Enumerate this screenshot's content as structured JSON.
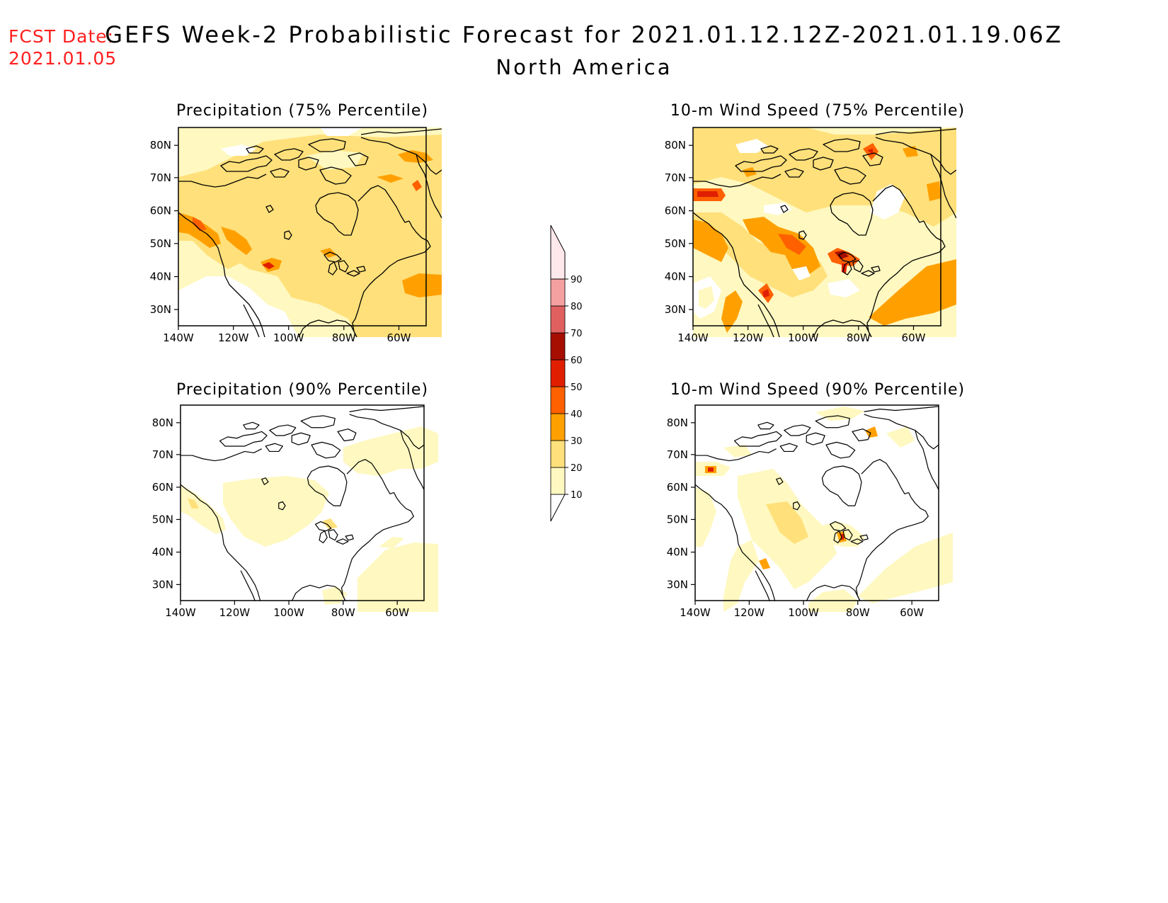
{
  "header": {
    "fcst_label": "FCST Date:",
    "fcst_date": "2021.01.05",
    "title": "GEFS Week-2 Probabilistic Forecast for 2021.01.12.12Z-2021.01.19.06Z",
    "region": "North America"
  },
  "axes": {
    "lat_ticks": [
      "80N",
      "70N",
      "60N",
      "50N",
      "40N",
      "30N"
    ],
    "lon_ticks": [
      "140W",
      "120W",
      "100W",
      "80W",
      "60W"
    ]
  },
  "panels": [
    {
      "id": "precip75",
      "title": "Precipitation (75% Percentile)"
    },
    {
      "id": "wind75",
      "title": "10-m Wind Speed (75% Percentile)"
    },
    {
      "id": "precip90",
      "title": "Precipitation (90% Percentile)"
    },
    {
      "id": "wind90",
      "title": "10-m Wind Speed (90% Percentile)"
    }
  ],
  "colorbar": {
    "levels": [
      "10",
      "20",
      "30",
      "40",
      "50",
      "60",
      "70",
      "80",
      "90"
    ],
    "colors": [
      "#fff8c0",
      "#ffe07a",
      "#ffa000",
      "#ff6000",
      "#e01e00",
      "#a50e00",
      "#e06060",
      "#f5a0a0",
      "#ffe8ec"
    ]
  }
}
